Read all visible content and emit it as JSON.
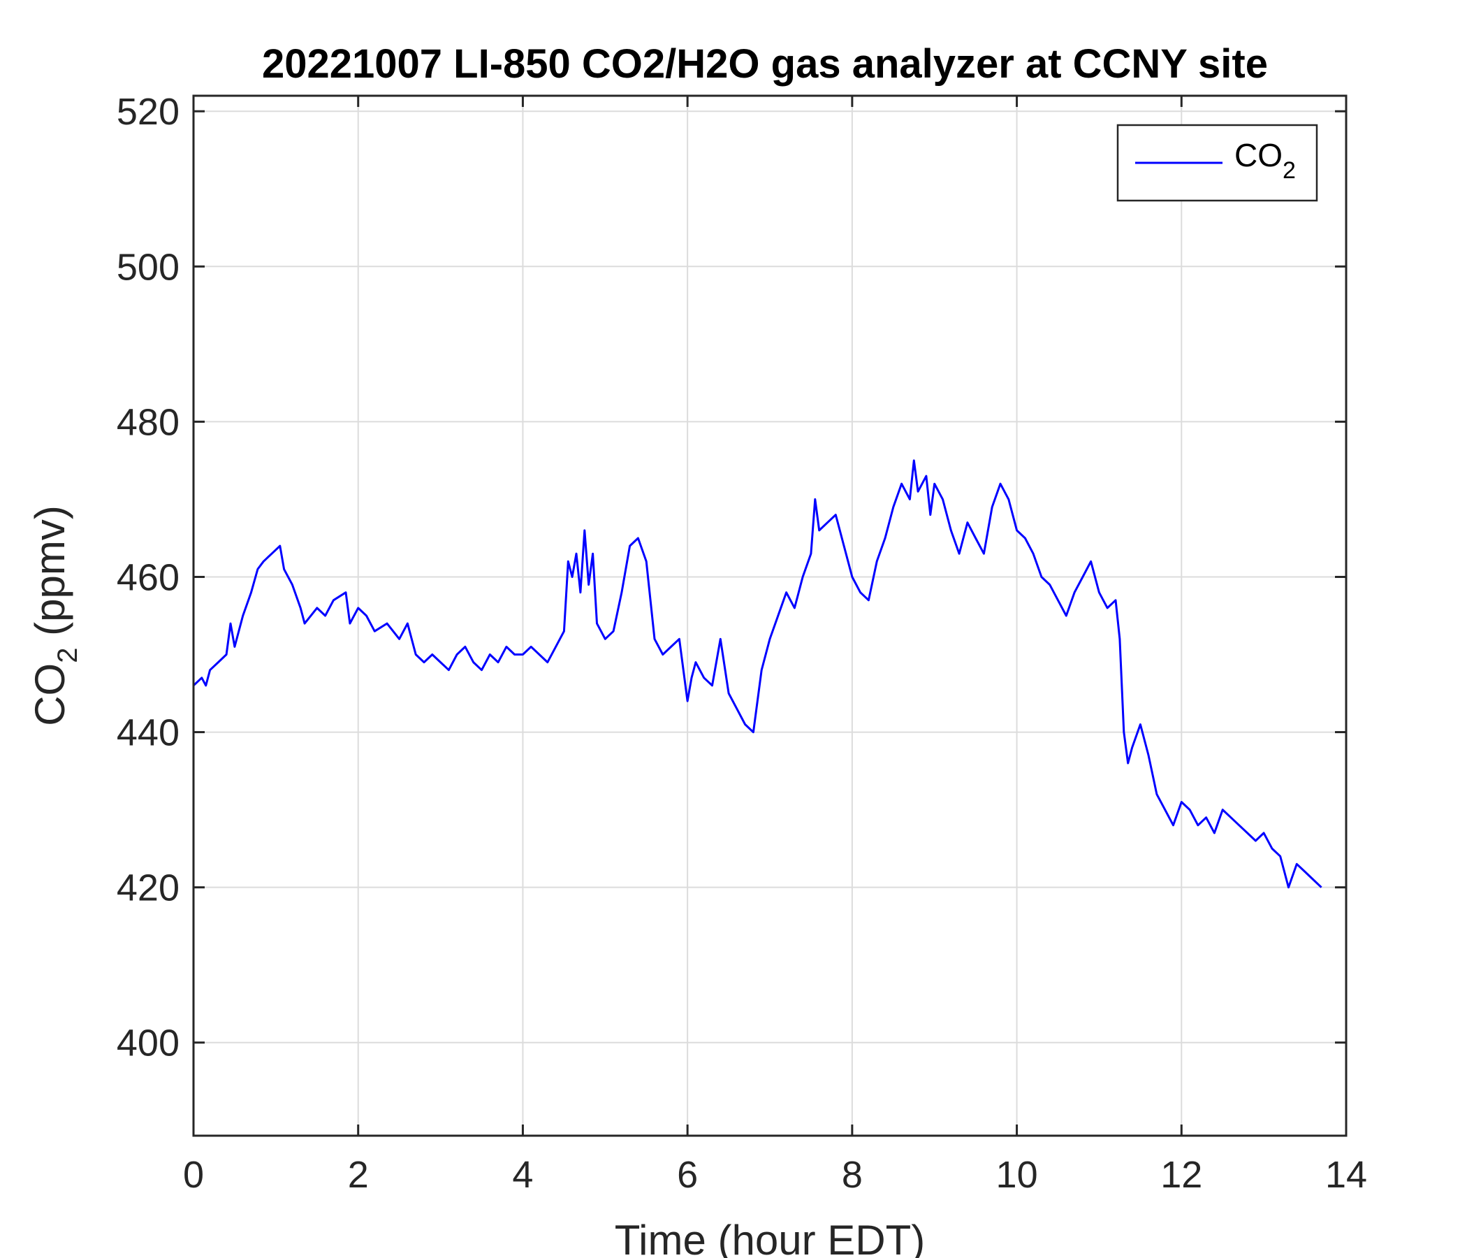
{
  "chart_data": {
    "type": "line",
    "title": "20221007 LI-850 CO2/H2O gas analyzer at CCNY site",
    "xlabel": "Time (hour EDT)",
    "ylabel": {
      "base": "CO",
      "sub": "2",
      "rest": " (ppmv)"
    },
    "xlim": [
      0,
      14
    ],
    "ylim": [
      388,
      522
    ],
    "xticks": [
      0,
      2,
      4,
      6,
      8,
      10,
      12,
      14
    ],
    "yticks": [
      400,
      420,
      440,
      460,
      480,
      500,
      520
    ],
    "grid": true,
    "legend": {
      "placement": "top-right",
      "entries": [
        {
          "base": "CO",
          "sub": "2"
        }
      ]
    },
    "series": [
      {
        "name": "CO2",
        "color": "#0000ff",
        "x": [
          0,
          0.1,
          0.15,
          0.2,
          0.3,
          0.4,
          0.45,
          0.5,
          0.6,
          0.7,
          0.78,
          0.85,
          0.95,
          1.05,
          1.1,
          1.2,
          1.3,
          1.35,
          1.5,
          1.6,
          1.7,
          1.85,
          1.9,
          2.0,
          2.1,
          2.2,
          2.35,
          2.5,
          2.6,
          2.7,
          2.8,
          2.9,
          3.0,
          3.1,
          3.2,
          3.3,
          3.4,
          3.5,
          3.6,
          3.7,
          3.8,
          3.9,
          4.0,
          4.1,
          4.2,
          4.3,
          4.4,
          4.5,
          4.55,
          4.6,
          4.65,
          4.7,
          4.75,
          4.8,
          4.85,
          4.9,
          5.0,
          5.1,
          5.2,
          5.3,
          5.4,
          5.5,
          5.6,
          5.7,
          5.8,
          5.9,
          6.0,
          6.05,
          6.1,
          6.2,
          6.3,
          6.4,
          6.5,
          6.6,
          6.7,
          6.8,
          6.9,
          7.0,
          7.1,
          7.2,
          7.3,
          7.4,
          7.5,
          7.55,
          7.6,
          7.7,
          7.8,
          7.9,
          8.0,
          8.1,
          8.2,
          8.3,
          8.4,
          8.5,
          8.6,
          8.7,
          8.75,
          8.8,
          8.9,
          8.95,
          9.0,
          9.1,
          9.2,
          9.3,
          9.4,
          9.5,
          9.6,
          9.7,
          9.8,
          9.9,
          10.0,
          10.1,
          10.2,
          10.3,
          10.4,
          10.5,
          10.6,
          10.7,
          10.8,
          10.9,
          11.0,
          11.1,
          11.2,
          11.25,
          11.3,
          11.35,
          11.4,
          11.5,
          11.6,
          11.7,
          11.8,
          11.9,
          12.0,
          12.1,
          12.2,
          12.3,
          12.4,
          12.5,
          12.6,
          12.7,
          12.8,
          12.9,
          13.0,
          13.1,
          13.2,
          13.25,
          13.3,
          13.4,
          13.5,
          13.6,
          13.7
        ],
        "y": [
          446,
          447,
          446,
          448,
          449,
          450,
          454,
          451,
          455,
          458,
          461,
          462,
          463,
          464,
          461,
          459,
          456,
          454,
          456,
          455,
          457,
          458,
          454,
          456,
          455,
          453,
          454,
          452,
          454,
          450,
          449,
          450,
          449,
          448,
          450,
          451,
          449,
          448,
          450,
          449,
          451,
          450,
          450,
          451,
          450,
          449,
          451,
          453,
          462,
          460,
          463,
          458,
          466,
          459,
          463,
          454,
          452,
          453,
          458,
          464,
          465,
          462,
          452,
          450,
          451,
          452,
          444,
          447,
          449,
          447,
          446,
          452,
          445,
          443,
          441,
          440,
          448,
          452,
          455,
          458,
          456,
          460,
          463,
          470,
          466,
          467,
          468,
          464,
          460,
          458,
          457,
          462,
          465,
          469,
          472,
          470,
          475,
          471,
          473,
          468,
          472,
          470,
          466,
          463,
          467,
          465,
          463,
          469,
          472,
          470,
          466,
          465,
          463,
          460,
          459,
          457,
          455,
          458,
          460,
          462,
          458,
          456,
          457,
          452,
          440,
          436,
          438,
          441,
          437,
          432,
          430,
          428,
          431,
          430,
          428,
          429,
          427,
          430,
          429,
          428,
          427,
          426,
          427,
          425,
          424,
          422,
          420,
          423,
          422,
          421,
          420
        ]
      }
    ]
  }
}
